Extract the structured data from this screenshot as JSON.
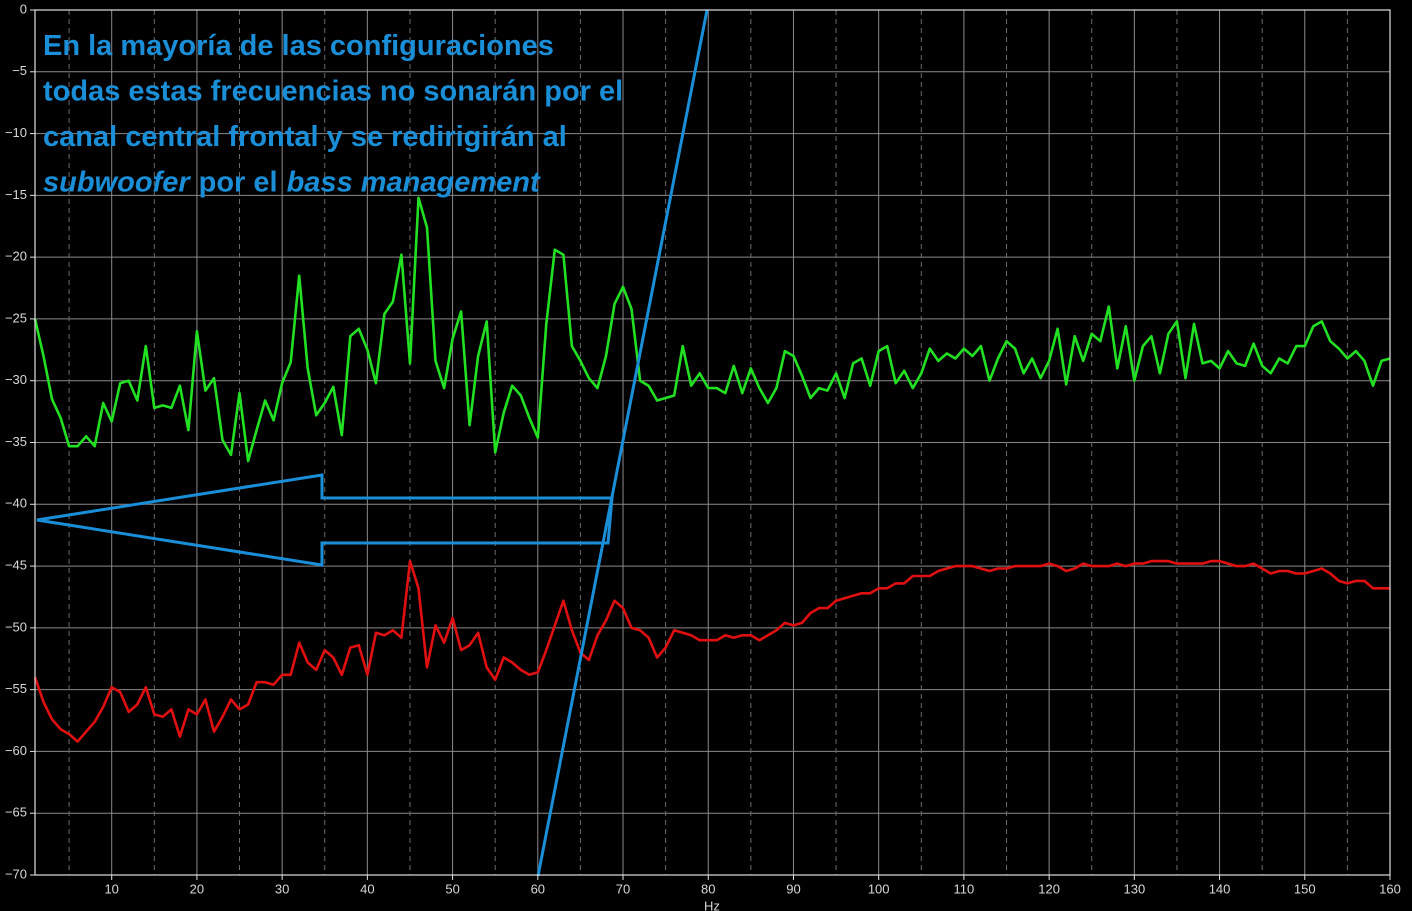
{
  "chart_data": {
    "type": "line",
    "xlabel": "Hz",
    "annotation": {
      "lines": [
        "En la mayoría de las configuraciones",
        "todas estas frecuencias no sonarán por el",
        "canal central frontal y se redirigirán al"
      ],
      "last_line": [
        {
          "text": "subwoofer",
          "italic": true
        },
        {
          "text": "por el",
          "italic": false
        },
        {
          "text": "bass management",
          "italic": true
        }
      ],
      "color": "#1a8fd8"
    },
    "x": [
      1,
      2,
      3,
      4,
      5,
      6,
      7,
      8,
      9,
      10,
      11,
      12,
      13,
      14,
      15,
      16,
      17,
      18,
      19,
      20,
      21,
      22,
      23,
      24,
      25,
      26,
      27,
      28,
      29,
      30,
      31,
      32,
      33,
      34,
      35,
      36,
      37,
      38,
      39,
      40,
      41,
      42,
      43,
      44,
      45,
      46,
      47,
      48,
      49,
      50,
      51,
      52,
      53,
      54,
      55,
      56,
      57,
      58,
      59,
      60,
      61,
      62,
      63,
      64,
      65,
      66,
      67,
      68,
      69,
      70,
      71,
      72,
      73,
      74,
      75,
      76,
      77,
      78,
      79,
      80,
      81,
      82,
      83,
      84,
      85,
      86,
      87,
      88,
      89,
      90,
      91,
      92,
      93,
      94,
      95,
      96,
      97,
      98,
      99,
      100,
      101,
      102,
      103,
      104,
      105,
      106,
      107,
      108,
      109,
      110,
      111,
      112,
      113,
      114,
      115,
      116,
      117,
      118,
      119,
      120,
      121,
      122,
      123,
      124,
      125,
      126,
      127,
      128,
      129,
      130,
      131,
      132,
      133,
      134,
      135,
      136,
      137,
      138,
      139,
      140,
      141,
      142,
      143,
      144,
      145,
      146,
      147,
      148,
      149,
      150,
      151,
      152,
      153,
      154,
      155,
      156,
      157,
      158,
      159,
      160
    ],
    "series": [
      {
        "color": "#22e022",
        "values": [
          -25,
          -28,
          -31.5,
          -33,
          -35.3,
          -35.3,
          -34.5,
          -35.3,
          -31.8,
          -33.3,
          -30.2,
          -30,
          -31.6,
          -27.2,
          -32.2,
          -32,
          -32.2,
          -30.4,
          -34,
          -26,
          -30.8,
          -29.8,
          -34.8,
          -36,
          -31,
          -36.5,
          -34,
          -31.6,
          -33.2,
          -30.2,
          -28.5,
          -21.5,
          -29,
          -32.8,
          -31.8,
          -30.5,
          -34.4,
          -26.4,
          -25.8,
          -27.5,
          -30.2,
          -24.6,
          -23.6,
          -19.8,
          -28.6,
          -15.2,
          -17.6,
          -28.4,
          -30.6,
          -26.6,
          -24.4,
          -33.6,
          -28,
          -25.2,
          -35.8,
          -32.6,
          -30.4,
          -31.2,
          -33,
          -34.6,
          -25.4,
          -19.4,
          -19.8,
          -27.2,
          -28.4,
          -29.8,
          -30.6,
          -28,
          -23.8,
          -22.4,
          -24.2,
          -30,
          -30.4,
          -31.6,
          -31.4,
          -31.2,
          -27.2,
          -30.4,
          -29.4,
          -30.6,
          -30.6,
          -31,
          -28.8,
          -31,
          -29,
          -30.6,
          -31.8,
          -30.6,
          -27.6,
          -28,
          -29.6,
          -31.4,
          -30.6,
          -30.8,
          -29.4,
          -31.4,
          -28.6,
          -28.2,
          -30.4,
          -27.6,
          -27.2,
          -30.2,
          -29.2,
          -30.6,
          -29.4,
          -27.4,
          -28.4,
          -27.8,
          -28.2,
          -27.4,
          -28,
          -27.2,
          -30,
          -28.2,
          -26.8,
          -27.4,
          -29.4,
          -28.2,
          -29.8,
          -28.4,
          -25.8,
          -30.3,
          -26.4,
          -28.4,
          -26.2,
          -26.8,
          -24,
          -29,
          -25.6,
          -30,
          -27.2,
          -26.4,
          -29.4,
          -26.2,
          -25.2,
          -29.8,
          -25.4,
          -28.6,
          -28.4,
          -29,
          -27.6,
          -28.6,
          -28.8,
          -27,
          -28.8,
          -29.4,
          -28.2,
          -28.6,
          -27.2,
          -27.2,
          -25.6,
          -25.2,
          -26.8,
          -27.4,
          -28.2,
          -27.6,
          -28.4,
          -30.4,
          -28.4,
          -28.2
        ]
      },
      {
        "color": "#e01010",
        "values": [
          -54,
          -56,
          -57.4,
          -58.2,
          -58.6,
          -59.2,
          -58.4,
          -57.6,
          -56.4,
          -54.8,
          -55.2,
          -56.8,
          -56.2,
          -54.8,
          -57,
          -57.2,
          -56.6,
          -58.8,
          -56.6,
          -57,
          -55.8,
          -58.4,
          -57.2,
          -55.8,
          -56.6,
          -56.2,
          -54.4,
          -54.4,
          -54.6,
          -53.8,
          -53.8,
          -51.2,
          -52.8,
          -53.4,
          -51.8,
          -52.4,
          -53.8,
          -51.6,
          -51.4,
          -53.8,
          -50.4,
          -50.6,
          -50.2,
          -50.8,
          -44.6,
          -46.8,
          -53.2,
          -49.8,
          -51.2,
          -49.2,
          -51.8,
          -51.4,
          -50.4,
          -53.2,
          -54.2,
          -52.4,
          -52.8,
          -53.4,
          -53.8,
          -53.6,
          -51.8,
          -49.8,
          -47.8,
          -50.2,
          -52,
          -52.6,
          -50.6,
          -49.4,
          -47.8,
          -48.4,
          -50,
          -50.2,
          -50.8,
          -52.4,
          -51.6,
          -50.2,
          -50.4,
          -50.6,
          -51,
          -51,
          -51,
          -50.6,
          -50.8,
          -50.6,
          -50.6,
          -51,
          -50.6,
          -50.2,
          -49.6,
          -49.8,
          -49.6,
          -48.8,
          -48.4,
          -48.4,
          -47.8,
          -47.6,
          -47.4,
          -47.2,
          -47.2,
          -46.8,
          -46.8,
          -46.4,
          -46.4,
          -45.8,
          -45.8,
          -45.8,
          -45.4,
          -45.2,
          -45,
          -45,
          -45,
          -45.2,
          -45.4,
          -45.2,
          -45.2,
          -45,
          -45,
          -45,
          -45,
          -44.8,
          -45,
          -45.4,
          -45.2,
          -44.8,
          -45,
          -45,
          -45,
          -44.8,
          -45,
          -44.8,
          -44.8,
          -44.6,
          -44.6,
          -44.6,
          -44.8,
          -44.8,
          -44.8,
          -44.8,
          -44.6,
          -44.6,
          -44.8,
          -45,
          -45,
          -44.8,
          -45.2,
          -45.6,
          -45.4,
          -45.4,
          -45.6,
          -45.6,
          -45.4,
          -45.2,
          -45.6,
          -46.2,
          -46.4,
          -46.2,
          -46.2,
          -46.8,
          -46.8,
          -46.8
        ]
      }
    ],
    "xlim": [
      1,
      160
    ],
    "xticks": [
      10,
      20,
      30,
      40,
      50,
      60,
      70,
      80,
      90,
      100,
      110,
      120,
      130,
      140,
      150,
      160
    ],
    "xticks_minor": [
      5,
      15,
      25,
      35,
      45,
      55,
      65,
      75,
      85,
      95,
      105,
      115,
      125,
      135,
      145,
      155
    ],
    "ylim": [
      -70,
      0
    ],
    "yticks": [
      {
        "value": -70,
        "label": "−70"
      },
      {
        "value": -65,
        "label": "−65"
      },
      {
        "value": -60,
        "label": "−60"
      },
      {
        "value": -55,
        "label": "−55"
      },
      {
        "value": -50,
        "label": "−50"
      },
      {
        "value": -45,
        "label": "−45"
      },
      {
        "value": -40,
        "label": "−40"
      },
      {
        "value": -35,
        "label": "−35"
      },
      {
        "value": -30,
        "label": "−30"
      },
      {
        "value": -25,
        "label": "−25"
      },
      {
        "value": -20,
        "label": "−20"
      },
      {
        "value": -15,
        "label": "−15"
      },
      {
        "value": -10,
        "label": "−10"
      },
      {
        "value": -5,
        "label": "−5"
      },
      0
    ],
    "grid": true,
    "background": "#000000"
  }
}
